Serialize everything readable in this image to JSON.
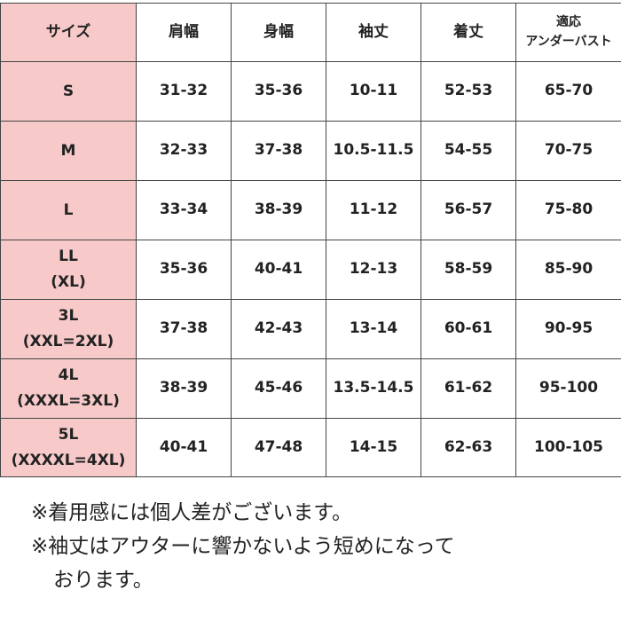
{
  "table": {
    "headers": [
      {
        "key": "size",
        "label": "サイズ"
      },
      {
        "key": "shoulder",
        "label": "肩幅"
      },
      {
        "key": "chest",
        "label": "身幅"
      },
      {
        "key": "sleeve",
        "label": "袖丈"
      },
      {
        "key": "length",
        "label": "着丈"
      },
      {
        "key": "underbust",
        "label_line1": "適応",
        "label_line2": "アンダーバスト"
      }
    ],
    "rows": [
      {
        "size": "S",
        "size_sub": "",
        "shoulder": "31-32",
        "chest": "35-36",
        "sleeve": "10-11",
        "length": "52-53",
        "underbust": "65-70"
      },
      {
        "size": "M",
        "size_sub": "",
        "shoulder": "32-33",
        "chest": "37-38",
        "sleeve": "10.5-11.5",
        "length": "54-55",
        "underbust": "70-75"
      },
      {
        "size": "L",
        "size_sub": "",
        "shoulder": "33-34",
        "chest": "38-39",
        "sleeve": "11-12",
        "length": "56-57",
        "underbust": "75-80"
      },
      {
        "size": "LL",
        "size_sub": "(XL)",
        "shoulder": "35-36",
        "chest": "40-41",
        "sleeve": "12-13",
        "length": "58-59",
        "underbust": "85-90"
      },
      {
        "size": "3L",
        "size_sub": "(XXL=2XL)",
        "shoulder": "37-38",
        "chest": "42-43",
        "sleeve": "13-14",
        "length": "60-61",
        "underbust": "90-95"
      },
      {
        "size": "4L",
        "size_sub": "(XXXL=3XL)",
        "shoulder": "38-39",
        "chest": "45-46",
        "sleeve": "13.5-14.5",
        "length": "61-62",
        "underbust": "95-100"
      },
      {
        "size": "5L",
        "size_sub": "(XXXXL=4XL)",
        "shoulder": "40-41",
        "chest": "47-48",
        "sleeve": "14-15",
        "length": "62-63",
        "underbust": "100-105"
      }
    ]
  },
  "notes": {
    "note1": "※着用感には個人差がございます。",
    "note2_line1": "※袖丈はアウターに響かないよう短めになって",
    "note2_line2": "おります。"
  },
  "colors": {
    "size_column_bg": "#f7c9c9",
    "border": "#444444",
    "text": "#222222"
  }
}
